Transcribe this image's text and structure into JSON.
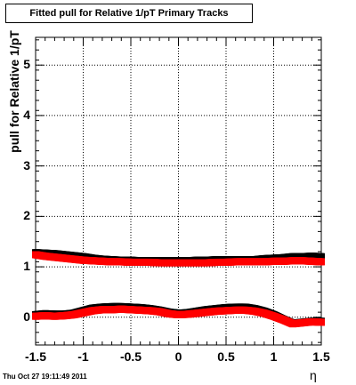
{
  "chart_data": {
    "type": "scatter",
    "title": "Fitted pull for Relative 1/pT  Primary Tracks",
    "ylabel": "pull for Relative 1/pT",
    "xlabel": "η",
    "xlim": [
      -1.5,
      1.5
    ],
    "ylim": [
      -0.55,
      5.55
    ],
    "x_ticks": [
      "-1.5",
      "-1",
      "-0.5",
      "0",
      "0.5",
      "1",
      "1.5"
    ],
    "y_ticks": [
      "0",
      "1",
      "2",
      "3",
      "4",
      "5"
    ],
    "grid": true,
    "series": [
      {
        "color": "#000000",
        "x": [
          -1.5,
          -1.4,
          -1.3,
          -1.2,
          -1.1,
          -1.0,
          -0.9,
          -0.8,
          -0.7,
          -0.6,
          -0.5,
          -0.4,
          -0.3,
          -0.2,
          -0.1,
          0.0,
          0.1,
          0.2,
          0.3,
          0.4,
          0.5,
          0.6,
          0.7,
          0.8,
          0.9,
          1.0,
          1.1,
          1.2,
          1.3,
          1.4,
          1.5
        ],
        "y": [
          1.28,
          1.27,
          1.26,
          1.24,
          1.22,
          1.2,
          1.17,
          1.15,
          1.14,
          1.13,
          1.13,
          1.12,
          1.12,
          1.12,
          1.12,
          1.12,
          1.12,
          1.13,
          1.13,
          1.14,
          1.14,
          1.14,
          1.14,
          1.14,
          1.16,
          1.17,
          1.18,
          1.2,
          1.2,
          1.21,
          1.2
        ]
      },
      {
        "color": "#ff0000",
        "x": [
          -1.5,
          -1.4,
          -1.3,
          -1.2,
          -1.1,
          -1.0,
          -0.9,
          -0.8,
          -0.7,
          -0.6,
          -0.5,
          -0.4,
          -0.3,
          -0.2,
          -0.1,
          0.0,
          0.1,
          0.2,
          0.3,
          0.4,
          0.5,
          0.6,
          0.7,
          0.8,
          0.9,
          1.0,
          1.1,
          1.2,
          1.3,
          1.4,
          1.5
        ],
        "y": [
          1.24,
          1.21,
          1.19,
          1.17,
          1.15,
          1.13,
          1.12,
          1.11,
          1.1,
          1.1,
          1.09,
          1.09,
          1.09,
          1.08,
          1.08,
          1.08,
          1.08,
          1.08,
          1.08,
          1.09,
          1.09,
          1.1,
          1.1,
          1.1,
          1.1,
          1.11,
          1.11,
          1.12,
          1.12,
          1.11,
          1.1
        ]
      },
      {
        "color": "#000000",
        "x": [
          -1.5,
          -1.4,
          -1.3,
          -1.2,
          -1.1,
          -1.0,
          -0.9,
          -0.8,
          -0.7,
          -0.6,
          -0.5,
          -0.4,
          -0.3,
          -0.2,
          -0.1,
          0.0,
          0.1,
          0.2,
          0.3,
          0.4,
          0.5,
          0.6,
          0.7,
          0.8,
          0.9,
          1.0,
          1.1,
          1.2,
          1.3,
          1.4,
          1.5
        ],
        "y": [
          0.05,
          0.07,
          0.06,
          0.06,
          0.08,
          0.13,
          0.18,
          0.2,
          0.21,
          0.21,
          0.2,
          0.19,
          0.17,
          0.14,
          0.1,
          0.08,
          0.09,
          0.12,
          0.15,
          0.17,
          0.19,
          0.2,
          0.2,
          0.17,
          0.12,
          0.05,
          -0.04,
          -0.12,
          -0.1,
          -0.08,
          -0.08
        ]
      },
      {
        "color": "#ff0000",
        "x": [
          -1.5,
          -1.4,
          -1.3,
          -1.2,
          -1.1,
          -1.0,
          -0.9,
          -0.8,
          -0.7,
          -0.6,
          -0.5,
          -0.4,
          -0.3,
          -0.2,
          -0.1,
          0.0,
          0.1,
          0.2,
          0.3,
          0.4,
          0.5,
          0.6,
          0.7,
          0.8,
          0.9,
          1.0,
          1.1,
          1.2,
          1.3,
          1.4,
          1.5
        ],
        "y": [
          0.02,
          0.03,
          0.02,
          0.03,
          0.05,
          0.09,
          0.13,
          0.15,
          0.15,
          0.16,
          0.15,
          0.14,
          0.13,
          0.11,
          0.07,
          0.05,
          0.06,
          0.08,
          0.1,
          0.12,
          0.13,
          0.14,
          0.14,
          0.12,
          0.08,
          0.02,
          -0.05,
          -0.13,
          -0.11,
          -0.09,
          -0.1
        ]
      }
    ]
  },
  "footer": {
    "timestamp": "Thu Oct 27 19:11:49 2011"
  }
}
